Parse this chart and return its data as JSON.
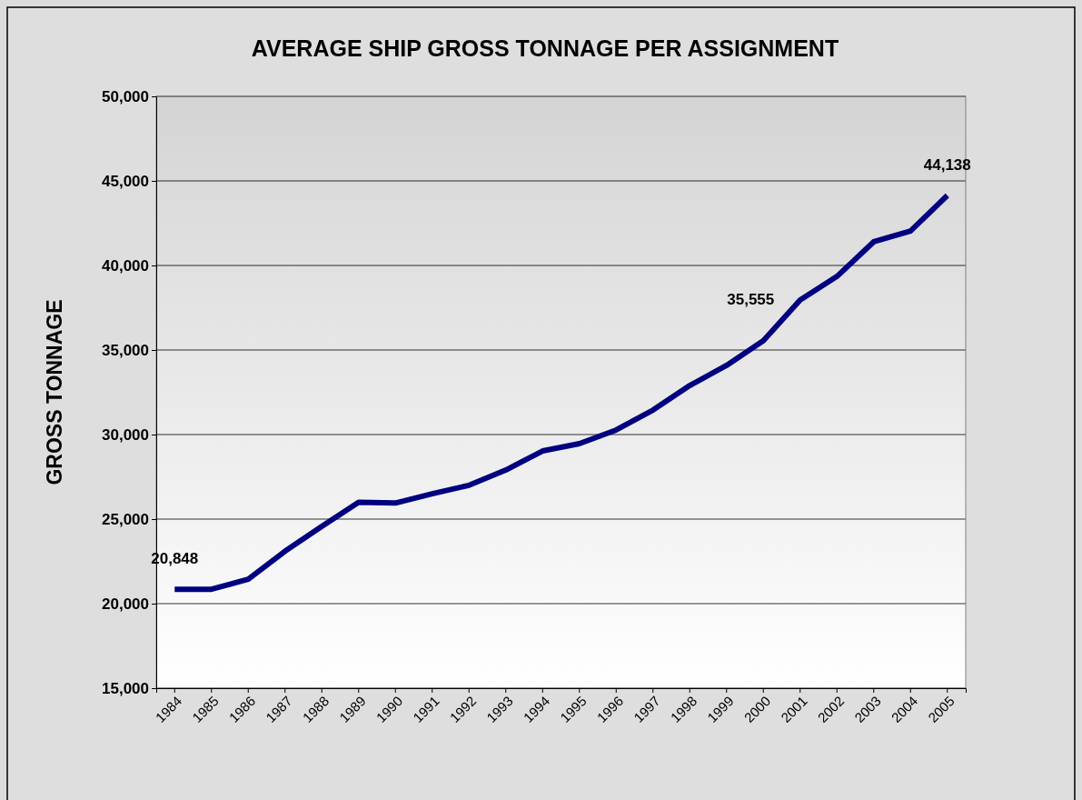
{
  "chart_data": {
    "type": "line",
    "title": "AVERAGE SHIP GROSS TONNAGE PER ASSIGNMENT",
    "ylabel": "GROSS TONNAGE",
    "categories": [
      "1984",
      "1985",
      "1986",
      "1987",
      "1988",
      "1989",
      "1990",
      "1991",
      "1992",
      "1993",
      "1994",
      "1995",
      "1996",
      "1997",
      "1998",
      "1999",
      "2000",
      "2001",
      "2002",
      "2003",
      "2004",
      "2005"
    ],
    "series": [
      {
        "color": "#000080",
        "values": [
          20848,
          20850,
          21450,
          23100,
          24570,
          26000,
          25950,
          26500,
          27000,
          27900,
          29030,
          29460,
          30270,
          31450,
          32900,
          34090,
          35555,
          37960,
          39350,
          41400,
          42040,
          44138
        ],
        "value_labels": [
          "20,848",
          null,
          null,
          null,
          null,
          null,
          null,
          null,
          null,
          null,
          null,
          null,
          null,
          null,
          null,
          null,
          "35,555",
          null,
          null,
          null,
          null,
          "44,138"
        ]
      }
    ],
    "ylim": [
      15000,
      50000
    ],
    "yticks": [
      {
        "value": 15000,
        "label": "15,000"
      },
      {
        "value": 20000,
        "label": "20,000"
      },
      {
        "value": 25000,
        "label": "25,000"
      },
      {
        "value": 30000,
        "label": "30,000"
      },
      {
        "value": 35000,
        "label": "35,000"
      },
      {
        "value": 40000,
        "label": "40,000"
      },
      {
        "value": 45000,
        "label": "45,000"
      },
      {
        "value": 50000,
        "label": "50,000"
      }
    ],
    "grid": "y",
    "marker": "none",
    "line_style": "solid"
  }
}
